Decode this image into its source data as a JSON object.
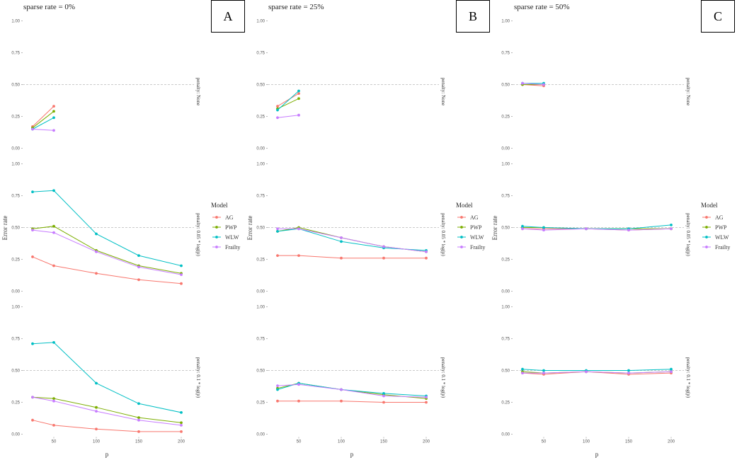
{
  "colors": {
    "AG": "#F8766D",
    "PWP": "#7CAE00",
    "WLW": "#00BFC4",
    "Frailty": "#C77CFF",
    "ref_line": "#bbbbbb"
  },
  "legend": {
    "title": "Model",
    "entries": [
      "AG",
      "PWP",
      "WLW",
      "Frailty"
    ]
  },
  "chart_data": [
    {
      "type": "line",
      "title": "sparse rate = 0%",
      "label": "A",
      "xlabel": "p",
      "ylabel": "Error rate",
      "ylim": [
        0,
        1
      ],
      "yticks": [
        "0.00",
        "0.25",
        "0.50",
        "0.75",
        "1.00"
      ],
      "xticks": [
        50,
        100,
        150,
        200
      ],
      "reference_y": 0.5,
      "facets": [
        {
          "strip": "penalty: None",
          "series": [
            {
              "name": "AG",
              "x": [
                25,
                50
              ],
              "values": [
                0.17,
                0.33
              ]
            },
            {
              "name": "PWP",
              "x": [
                25,
                50
              ],
              "values": [
                0.16,
                0.29
              ]
            },
            {
              "name": "WLW",
              "x": [
                25,
                50
              ],
              "values": [
                0.15,
                0.24
              ]
            },
            {
              "name": "Frailty",
              "x": [
                25,
                50
              ],
              "values": [
                0.15,
                0.14
              ]
            }
          ]
        },
        {
          "strip": "penalty: 0.05 * log(p)",
          "series": [
            {
              "name": "AG",
              "x": [
                25,
                50,
                100,
                150,
                200
              ],
              "values": [
                0.27,
                0.2,
                0.14,
                0.09,
                0.06
              ]
            },
            {
              "name": "PWP",
              "x": [
                25,
                50,
                100,
                150,
                200
              ],
              "values": [
                0.49,
                0.51,
                0.32,
                0.2,
                0.14
              ]
            },
            {
              "name": "WLW",
              "x": [
                25,
                50,
                100,
                150,
                200
              ],
              "values": [
                0.78,
                0.79,
                0.45,
                0.28,
                0.2
              ]
            },
            {
              "name": "Frailty",
              "x": [
                25,
                50,
                100,
                150,
                200
              ],
              "values": [
                0.48,
                0.46,
                0.31,
                0.19,
                0.13
              ]
            }
          ]
        },
        {
          "strip": "penalty: 0.1 * log(p)",
          "series": [
            {
              "name": "AG",
              "x": [
                25,
                50,
                100,
                150,
                200
              ],
              "values": [
                0.11,
                0.07,
                0.04,
                0.02,
                0.02
              ]
            },
            {
              "name": "PWP",
              "x": [
                25,
                50,
                100,
                150,
                200
              ],
              "values": [
                0.29,
                0.28,
                0.21,
                0.13,
                0.09
              ]
            },
            {
              "name": "WLW",
              "x": [
                25,
                50,
                100,
                150,
                200
              ],
              "values": [
                0.71,
                0.72,
                0.4,
                0.24,
                0.17
              ]
            },
            {
              "name": "Frailty",
              "x": [
                25,
                50,
                100,
                150,
                200
              ],
              "values": [
                0.29,
                0.26,
                0.18,
                0.11,
                0.07
              ]
            }
          ]
        }
      ]
    },
    {
      "type": "line",
      "title": "sparse rate = 25%",
      "label": "B",
      "xlabel": "p",
      "ylabel": "Error rate",
      "ylim": [
        0,
        1
      ],
      "yticks": [
        "0.00",
        "0.25",
        "0.50",
        "0.75",
        "1.00"
      ],
      "xticks": [
        50,
        100,
        150,
        200
      ],
      "reference_y": 0.5,
      "facets": [
        {
          "strip": "penalty: None",
          "series": [
            {
              "name": "AG",
              "x": [
                25,
                50
              ],
              "values": [
                0.33,
                0.43
              ]
            },
            {
              "name": "PWP",
              "x": [
                25,
                50
              ],
              "values": [
                0.31,
                0.39
              ]
            },
            {
              "name": "WLW",
              "x": [
                25,
                50
              ],
              "values": [
                0.3,
                0.45
              ]
            },
            {
              "name": "Frailty",
              "x": [
                25,
                50
              ],
              "values": [
                0.24,
                0.26
              ]
            }
          ]
        },
        {
          "strip": "penalty: 0.05 * log(p)",
          "series": [
            {
              "name": "AG",
              "x": [
                25,
                50,
                100,
                150,
                200
              ],
              "values": [
                0.28,
                0.28,
                0.26,
                0.26,
                0.26
              ]
            },
            {
              "name": "PWP",
              "x": [
                25,
                50,
                100,
                150,
                200
              ],
              "values": [
                0.47,
                0.5,
                0.42,
                0.35,
                0.31
              ]
            },
            {
              "name": "WLW",
              "x": [
                25,
                50,
                100,
                150,
                200
              ],
              "values": [
                0.47,
                0.49,
                0.39,
                0.34,
                0.32
              ]
            },
            {
              "name": "Frailty",
              "x": [
                25,
                50,
                100,
                150,
                200
              ],
              "values": [
                0.49,
                0.49,
                0.42,
                0.35,
                0.31
              ]
            }
          ]
        },
        {
          "strip": "penalty: 0.1 * log(p)",
          "series": [
            {
              "name": "AG",
              "x": [
                25,
                50,
                100,
                150,
                200
              ],
              "values": [
                0.26,
                0.26,
                0.26,
                0.25,
                0.25
              ]
            },
            {
              "name": "PWP",
              "x": [
                25,
                50,
                100,
                150,
                200
              ],
              "values": [
                0.36,
                0.4,
                0.35,
                0.31,
                0.28
              ]
            },
            {
              "name": "WLW",
              "x": [
                25,
                50,
                100,
                150,
                200
              ],
              "values": [
                0.35,
                0.4,
                0.35,
                0.32,
                0.3
              ]
            },
            {
              "name": "Frailty",
              "x": [
                25,
                50,
                100,
                150,
                200
              ],
              "values": [
                0.38,
                0.39,
                0.35,
                0.3,
                0.29
              ]
            }
          ]
        }
      ]
    },
    {
      "type": "line",
      "title": "sparse rate = 50%",
      "label": "C",
      "xlabel": "p",
      "ylabel": "Error rate",
      "ylim": [
        0,
        1
      ],
      "yticks": [
        "0.00",
        "0.25",
        "0.50",
        "0.75",
        "1.00"
      ],
      "xticks": [
        50,
        100,
        150,
        200
      ],
      "reference_y": 0.5,
      "facets": [
        {
          "strip": "penalty: None",
          "series": [
            {
              "name": "AG",
              "x": [
                25,
                50
              ],
              "values": [
                0.5,
                0.49
              ]
            },
            {
              "name": "PWP",
              "x": [
                25,
                50
              ],
              "values": [
                0.5,
                0.5
              ]
            },
            {
              "name": "WLW",
              "x": [
                25,
                50
              ],
              "values": [
                0.51,
                0.51
              ]
            },
            {
              "name": "Frailty",
              "x": [
                25,
                50
              ],
              "values": [
                0.51,
                0.5
              ]
            }
          ]
        },
        {
          "strip": "penalty: 0.05 * log(p)",
          "series": [
            {
              "name": "AG",
              "x": [
                25,
                50,
                100,
                150,
                200
              ],
              "values": [
                0.49,
                0.49,
                0.49,
                0.48,
                0.49
              ]
            },
            {
              "name": "PWP",
              "x": [
                25,
                50,
                100,
                150,
                200
              ],
              "values": [
                0.5,
                0.5,
                0.49,
                0.49,
                0.49
              ]
            },
            {
              "name": "WLW",
              "x": [
                25,
                50,
                100,
                150,
                200
              ],
              "values": [
                0.51,
                0.5,
                0.49,
                0.49,
                0.52
              ]
            },
            {
              "name": "Frailty",
              "x": [
                25,
                50,
                100,
                150,
                200
              ],
              "values": [
                0.49,
                0.48,
                0.49,
                0.48,
                0.49
              ]
            }
          ]
        },
        {
          "strip": "penalty: 0.1 * log(p)",
          "series": [
            {
              "name": "AG",
              "x": [
                25,
                50,
                100,
                150,
                200
              ],
              "values": [
                0.48,
                0.47,
                0.49,
                0.47,
                0.48
              ]
            },
            {
              "name": "PWP",
              "x": [
                25,
                50,
                100,
                150,
                200
              ],
              "values": [
                0.49,
                0.48,
                0.49,
                0.48,
                0.49
              ]
            },
            {
              "name": "WLW",
              "x": [
                25,
                50,
                100,
                150,
                200
              ],
              "values": [
                0.51,
                0.5,
                0.5,
                0.5,
                0.51
              ]
            },
            {
              "name": "Frailty",
              "x": [
                25,
                50,
                100,
                150,
                200
              ],
              "values": [
                0.48,
                0.48,
                0.49,
                0.48,
                0.49
              ]
            }
          ]
        }
      ]
    }
  ]
}
